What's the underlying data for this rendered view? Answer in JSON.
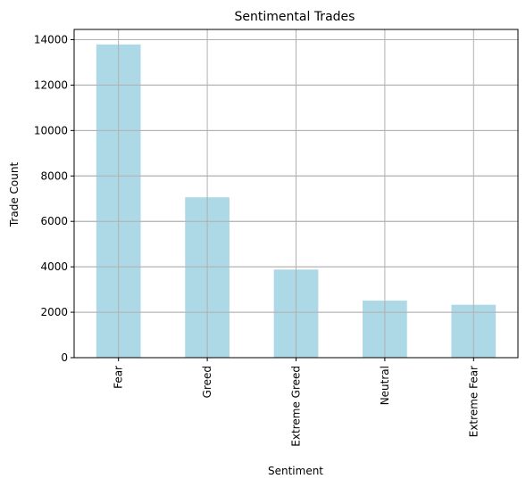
{
  "chart_data": {
    "type": "bar",
    "title": "Sentimental Trades",
    "xlabel": "Sentiment",
    "ylabel": "Trade Count",
    "categories": [
      "Fear",
      "Greed",
      "Extreme Greed",
      "Neutral",
      "Extreme Fear"
    ],
    "values": [
      13790,
      7060,
      3880,
      2510,
      2330
    ],
    "ylim": [
      0,
      14450
    ],
    "yticks": [
      0,
      2000,
      4000,
      6000,
      8000,
      10000,
      12000,
      14000
    ],
    "ytick_labels": [
      "0",
      "2000",
      "4000",
      "6000",
      "8000",
      "10000",
      "12000",
      "14000"
    ],
    "grid": true,
    "legend": "none",
    "colors": {
      "bar": "#add8e6",
      "grid": "#b0b0b0",
      "axis": "#000000"
    }
  }
}
